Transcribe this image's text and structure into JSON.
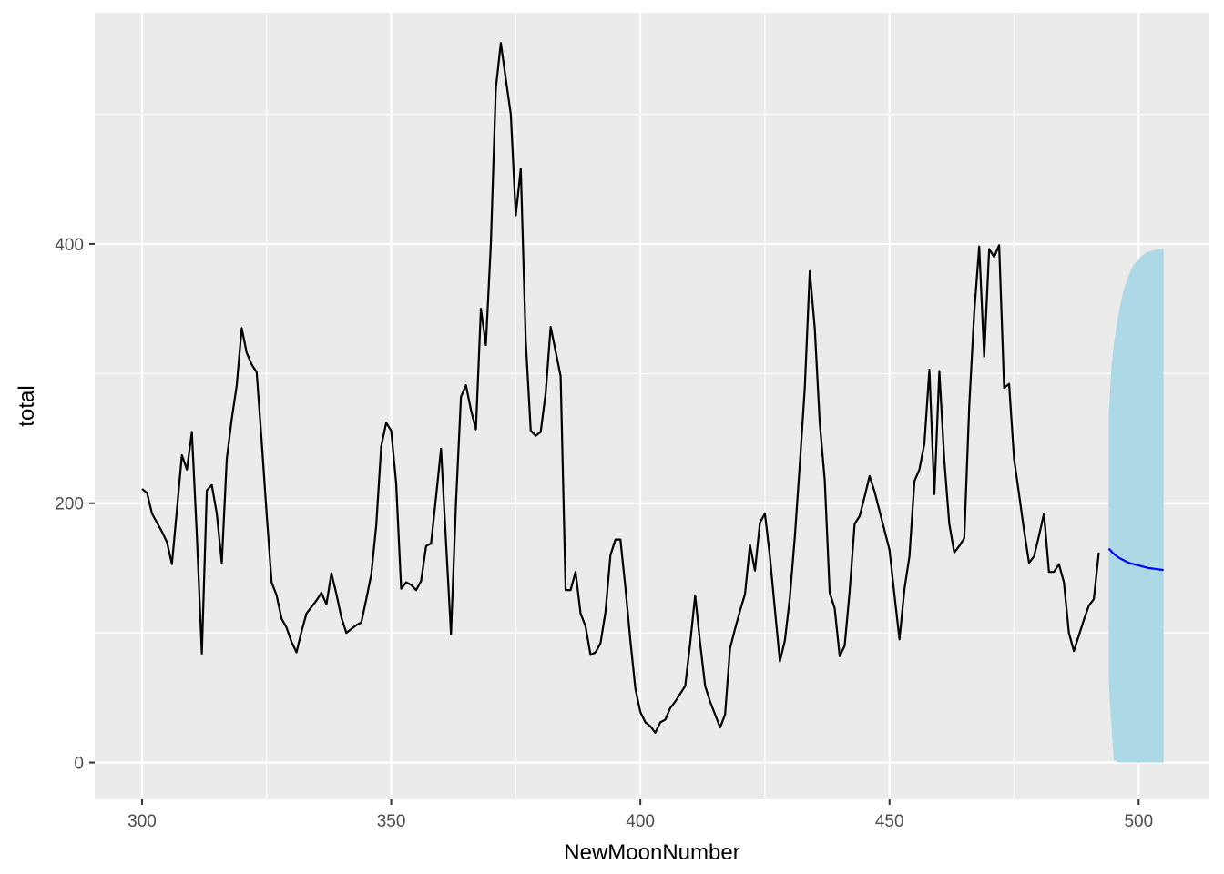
{
  "chart_data": {
    "type": "line",
    "xlabel": "NewMoonNumber",
    "ylabel": "total",
    "xlim": [
      290.5,
      514.2
    ],
    "ylim": [
      -28.4,
      578.3
    ],
    "x_ticks": [
      300,
      350,
      400,
      450,
      500
    ],
    "y_ticks": [
      0,
      200,
      400
    ],
    "x_tick_labels": [
      "300",
      "350",
      "400",
      "450",
      "500"
    ],
    "y_tick_labels": [
      "0",
      "200",
      "400"
    ],
    "grid": true,
    "panel_background": "#ebebeb",
    "grid_color": "#ffffff",
    "series": [
      {
        "role": "observed",
        "color": "#000000",
        "x": [
          300,
          301,
          302,
          303,
          304,
          305,
          306,
          307,
          308,
          309,
          310,
          311,
          312,
          313,
          314,
          315,
          316,
          317,
          318,
          319,
          320,
          321,
          322,
          323,
          324,
          325,
          326,
          327,
          328,
          329,
          330,
          331,
          332,
          333,
          334,
          335,
          336,
          337,
          338,
          339,
          340,
          341,
          342,
          343,
          344,
          345,
          346,
          347,
          348,
          349,
          350,
          351,
          352,
          353,
          354,
          355,
          356,
          357,
          358,
          359,
          360,
          361,
          362,
          363,
          364,
          365,
          366,
          367,
          368,
          369,
          370,
          371,
          372,
          373,
          374,
          375,
          376,
          377,
          378,
          379,
          380,
          381,
          382,
          383,
          384,
          385,
          386,
          387,
          388,
          389,
          390,
          391,
          392,
          393,
          394,
          395,
          396,
          397,
          398,
          399,
          400,
          401,
          402,
          403,
          404,
          405,
          406,
          407,
          408,
          409,
          410,
          411,
          412,
          413,
          414,
          415,
          416,
          417,
          418,
          419,
          420,
          421,
          422,
          423,
          424,
          425,
          426,
          427,
          428,
          429,
          430,
          431,
          432,
          433,
          434,
          435,
          436,
          437,
          438,
          439,
          440,
          441,
          442,
          443,
          444,
          445,
          446,
          447,
          448,
          449,
          450,
          451,
          452,
          453,
          454,
          455,
          456,
          457,
          458,
          459,
          460,
          461,
          462,
          463,
          464,
          465,
          466,
          467,
          468,
          469,
          470,
          471,
          472,
          473,
          474,
          475,
          476,
          477,
          478,
          479,
          480,
          481,
          482,
          483,
          484,
          485,
          486,
          487,
          488,
          489,
          490,
          491,
          492
        ],
        "y": [
          211,
          208,
          192,
          185,
          178,
          170,
          153,
          195,
          237,
          226,
          255,
          175,
          84,
          210,
          214,
          192,
          154,
          234,
          265,
          291,
          335,
          316,
          307,
          301,
          248,
          192,
          139,
          129,
          111,
          104,
          93,
          85,
          101,
          115,
          120,
          125,
          131,
          122,
          146,
          130,
          112,
          100,
          103,
          106,
          108,
          126,
          145,
          183,
          244,
          262,
          256,
          215,
          134,
          139,
          137,
          133,
          140,
          167,
          169,
          205,
          242,
          170,
          99,
          200,
          282,
          291,
          272,
          257,
          350,
          322,
          400,
          520,
          555,
          527,
          500,
          422,
          458,
          325,
          256,
          252,
          255,
          285,
          336,
          317,
          298,
          133,
          133,
          147,
          115,
          105,
          83,
          85,
          92,
          116,
          160,
          172,
          172,
          135,
          94,
          57,
          39,
          31,
          28,
          23,
          31,
          33,
          42,
          47,
          53,
          59,
          92,
          129,
          92,
          59,
          47,
          37,
          27,
          37,
          88,
          103,
          117,
          130,
          168,
          148,
          185,
          192,
          159,
          118,
          78,
          94,
          127,
          174,
          230,
          289,
          379,
          335,
          262,
          218,
          131,
          119,
          82,
          90,
          132,
          184,
          190,
          205,
          221,
          209,
          194,
          179,
          164,
          129,
          95,
          134,
          159,
          217,
          226,
          246,
          303,
          207,
          302,
          233,
          184,
          162,
          167,
          173,
          275,
          347,
          398,
          313,
          396,
          390,
          399,
          289,
          292,
          234,
          207,
          179,
          154,
          159,
          175,
          192,
          147,
          147,
          153,
          139,
          100,
          86,
          98,
          110,
          121,
          126,
          162
        ]
      },
      {
        "role": "forecast-mean",
        "color": "#0000ff",
        "x": [
          494,
          495,
          496,
          497,
          498,
          499,
          500,
          501,
          502,
          503,
          504,
          505
        ],
        "y": [
          165,
          161,
          158,
          156,
          154,
          153,
          152,
          151,
          150,
          149.5,
          149,
          148.5
        ]
      }
    ],
    "ribbon": {
      "role": "forecast-interval",
      "color": "#add8e6",
      "x": [
        494,
        494.5,
        495,
        496,
        497,
        498,
        499,
        500,
        501,
        502,
        503,
        504,
        505
      ],
      "lower": [
        62,
        30,
        2,
        0,
        0,
        0,
        0,
        0,
        0,
        0,
        0,
        0,
        0
      ],
      "upper": [
        269,
        303,
        322,
        347,
        365,
        376,
        384,
        388,
        392,
        394,
        395,
        396,
        396
      ]
    }
  }
}
